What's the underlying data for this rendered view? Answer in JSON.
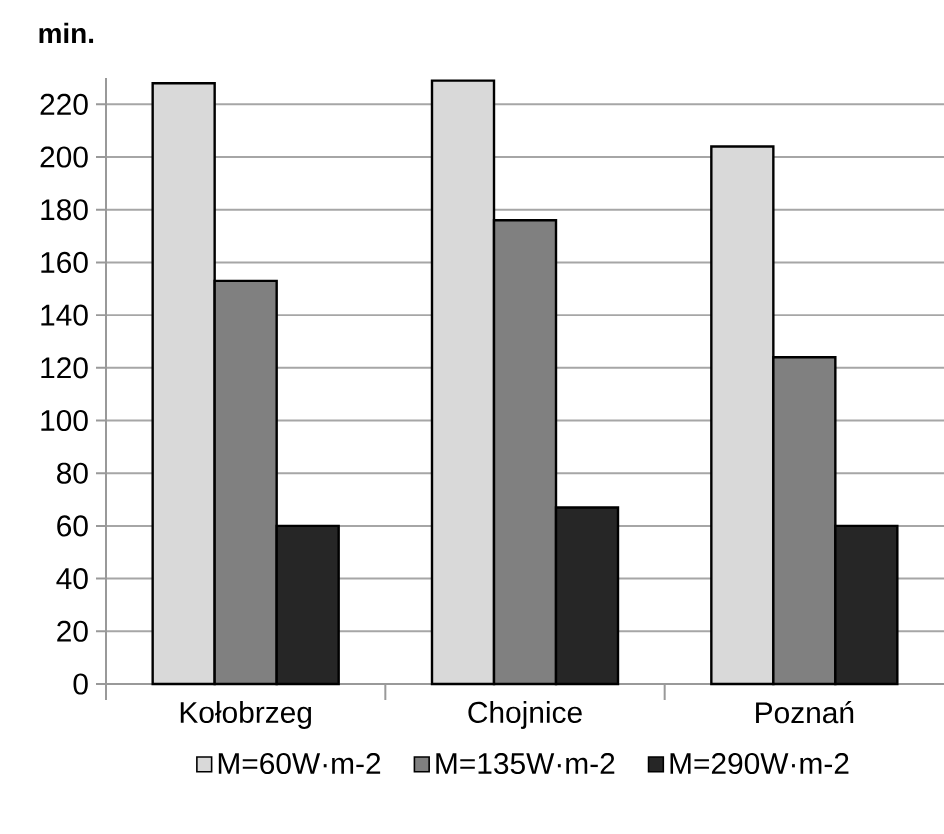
{
  "chart_data": {
    "type": "bar",
    "ylabel": "min.",
    "categories": [
      "Kołobrzeg",
      "Chojnice",
      "Poznań"
    ],
    "series": [
      {
        "name": "M=60W·m-2",
        "color": "#d9d9d9",
        "values": [
          228,
          229,
          204
        ]
      },
      {
        "name": "M=135W·m-2",
        "color": "#808080",
        "values": [
          153,
          176,
          124
        ]
      },
      {
        "name": "M=290W·m-2",
        "color": "#262626",
        "values": [
          60,
          67,
          60
        ]
      }
    ],
    "ylim": [
      0,
      230
    ],
    "yticks": [
      0,
      20,
      40,
      60,
      80,
      100,
      120,
      140,
      160,
      180,
      200,
      220
    ],
    "grid": "y",
    "legend": "bottom"
  }
}
